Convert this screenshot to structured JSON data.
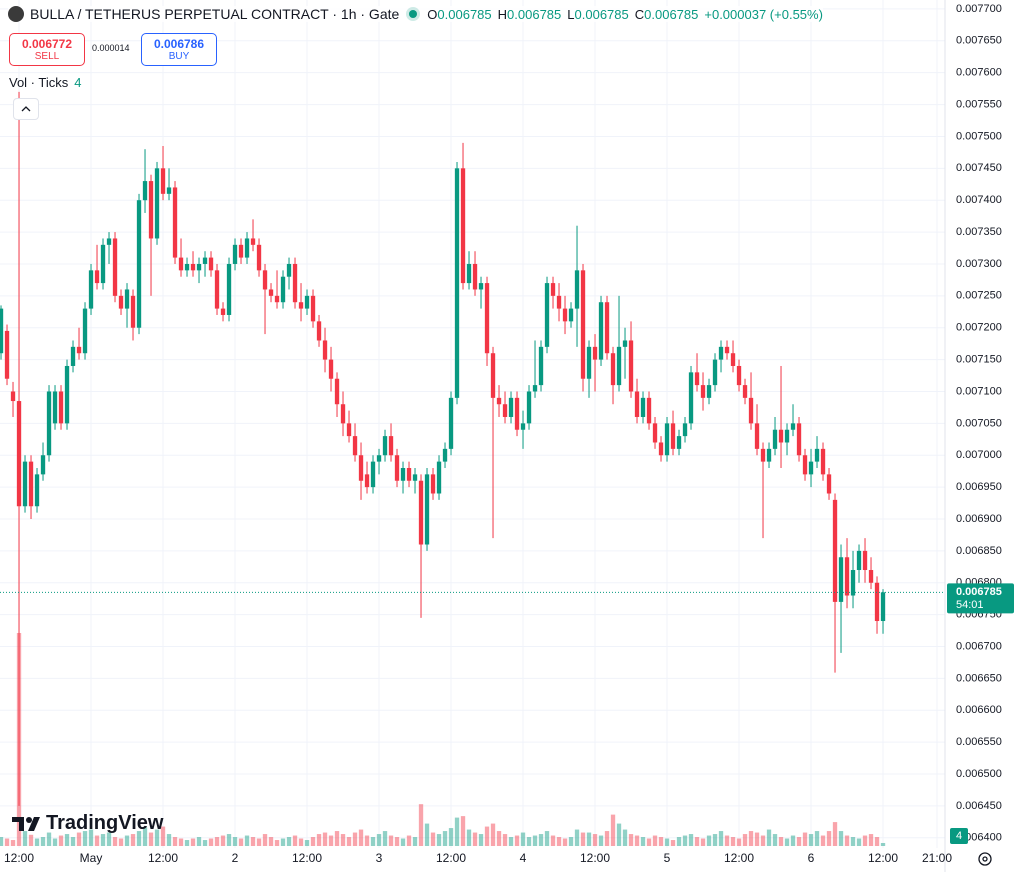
{
  "chart_data": {
    "type": "candlestick",
    "title": "BULLA / TETHERUS PERPETUAL CONTRACT · 1h · Gate",
    "ohlc_legend": [
      {
        "key": "O",
        "value": "0.006785"
      },
      {
        "key": "H",
        "value": "0.006785"
      },
      {
        "key": "L",
        "value": "0.006785"
      },
      {
        "key": "C",
        "value": "0.006785"
      }
    ],
    "change": "+0.000037 (+0.55%)",
    "sell": {
      "price": "0.006772",
      "label": "SELL"
    },
    "buy": {
      "price": "0.006786",
      "label": "BUY"
    },
    "spread": "0.000014",
    "volume_title": "Vol · Ticks",
    "logo_text": "TradingView",
    "countdown": "54:01",
    "last_price": {
      "value": 0.006785,
      "label": "0.006785"
    },
    "up_color": "#089981",
    "down_color": "#f23645",
    "grid": true,
    "xlim": [
      -0.17,
      157.33
    ],
    "xticks": [
      {
        "value": 3,
        "label": "12:00"
      },
      {
        "value": 15,
        "label": "May"
      },
      {
        "value": 27,
        "label": "12:00"
      },
      {
        "value": 39,
        "label": "2"
      },
      {
        "value": 51,
        "label": "12:00"
      },
      {
        "value": 63,
        "label": "3"
      },
      {
        "value": 75,
        "label": "12:00"
      },
      {
        "value": 87,
        "label": "4"
      },
      {
        "value": 99,
        "label": "12:00"
      },
      {
        "value": 111,
        "label": "5"
      },
      {
        "value": 123,
        "label": "12:00"
      },
      {
        "value": 135,
        "label": "6"
      },
      {
        "value": 147,
        "label": "12:00"
      },
      {
        "value": 156,
        "label": "21:00"
      }
    ],
    "ylim": [
      0.006384,
      0.007714
    ],
    "yticks": [
      {
        "value": 0.0064,
        "label": "0.006400"
      },
      {
        "value": 0.00645,
        "label": "0.006450"
      },
      {
        "value": 0.0065,
        "label": "0.006500"
      },
      {
        "value": 0.00655,
        "label": "0.006550"
      },
      {
        "value": 0.0066,
        "label": "0.006600"
      },
      {
        "value": 0.00665,
        "label": "0.006650"
      },
      {
        "value": 0.0067,
        "label": "0.006700"
      },
      {
        "value": 0.00675,
        "label": "0.006750"
      },
      {
        "value": 0.0068,
        "label": "0.006800"
      },
      {
        "value": 0.00685,
        "label": "0.006850"
      },
      {
        "value": 0.0069,
        "label": "0.006900"
      },
      {
        "value": 0.00695,
        "label": "0.006950"
      },
      {
        "value": 0.007,
        "label": "0.007000"
      },
      {
        "value": 0.00705,
        "label": "0.007050"
      },
      {
        "value": 0.0071,
        "label": "0.007100"
      },
      {
        "value": 0.00715,
        "label": "0.007150"
      },
      {
        "value": 0.0072,
        "label": "0.007200"
      },
      {
        "value": 0.00725,
        "label": "0.007250"
      },
      {
        "value": 0.0073,
        "label": "0.007300"
      },
      {
        "value": 0.00735,
        "label": "0.007350"
      },
      {
        "value": 0.0074,
        "label": "0.007400"
      },
      {
        "value": 0.00745,
        "label": "0.007450"
      },
      {
        "value": 0.0075,
        "label": "0.007500"
      },
      {
        "value": 0.00755,
        "label": "0.007550"
      },
      {
        "value": 0.0076,
        "label": "0.007600"
      },
      {
        "value": 0.00765,
        "label": "0.007650"
      },
      {
        "value": 0.0077,
        "label": "0.007700"
      }
    ],
    "ohlc": [
      [
        0.00716,
        0.007235,
        0.00715,
        0.00723
      ],
      [
        0.007195,
        0.007205,
        0.00711,
        0.00712
      ],
      [
        0.0071,
        0.007115,
        0.00706,
        0.007085
      ],
      [
        0.007085,
        0.00757,
        0.00645,
        0.00692
      ],
      [
        0.00692,
        0.007,
        0.00691,
        0.00699
      ],
      [
        0.00699,
        0.007,
        0.0069,
        0.00692
      ],
      [
        0.00692,
        0.00698,
        0.00691,
        0.00697
      ],
      [
        0.00697,
        0.00702,
        0.00696,
        0.007
      ],
      [
        0.007,
        0.00711,
        0.00699,
        0.0071
      ],
      [
        0.00705,
        0.00711,
        0.00704,
        0.0071
      ],
      [
        0.0071,
        0.00711,
        0.00704,
        0.00705
      ],
      [
        0.00705,
        0.00715,
        0.00704,
        0.00714
      ],
      [
        0.00714,
        0.00718,
        0.00713,
        0.00717
      ],
      [
        0.00717,
        0.0072,
        0.00715,
        0.00716
      ],
      [
        0.00716,
        0.00724,
        0.00715,
        0.00723
      ],
      [
        0.00723,
        0.0073,
        0.00722,
        0.00729
      ],
      [
        0.00729,
        0.00733,
        0.00726,
        0.00727
      ],
      [
        0.00727,
        0.00734,
        0.00726,
        0.00733
      ],
      [
        0.00733,
        0.00735,
        0.0073,
        0.00734
      ],
      [
        0.00734,
        0.00735,
        0.00724,
        0.00725
      ],
      [
        0.00725,
        0.00726,
        0.00722,
        0.00723
      ],
      [
        0.00723,
        0.00727,
        0.0072,
        0.00726
      ],
      [
        0.00725,
        0.00726,
        0.00718,
        0.0072
      ],
      [
        0.0072,
        0.00741,
        0.00719,
        0.0074
      ],
      [
        0.0074,
        0.00748,
        0.00738,
        0.00743
      ],
      [
        0.00743,
        0.00744,
        0.00725,
        0.00734
      ],
      [
        0.00734,
        0.00746,
        0.00733,
        0.00745
      ],
      [
        0.00745,
        0.007485,
        0.0074,
        0.00741
      ],
      [
        0.00741,
        0.00745,
        0.0074,
        0.00742
      ],
      [
        0.00742,
        0.00743,
        0.0073,
        0.00731
      ],
      [
        0.00731,
        0.00734,
        0.00728,
        0.00729
      ],
      [
        0.00729,
        0.00731,
        0.00728,
        0.0073
      ],
      [
        0.0073,
        0.00732,
        0.00728,
        0.00729
      ],
      [
        0.00729,
        0.00731,
        0.00727,
        0.0073
      ],
      [
        0.0073,
        0.00732,
        0.00728,
        0.00731
      ],
      [
        0.00731,
        0.00732,
        0.00728,
        0.00729
      ],
      [
        0.00729,
        0.0073,
        0.00722,
        0.00723
      ],
      [
        0.00723,
        0.00724,
        0.00721,
        0.00722
      ],
      [
        0.00722,
        0.00731,
        0.00721,
        0.0073
      ],
      [
        0.0073,
        0.00734,
        0.00729,
        0.00733
      ],
      [
        0.00733,
        0.00734,
        0.0073,
        0.00731
      ],
      [
        0.00731,
        0.00735,
        0.0073,
        0.00734
      ],
      [
        0.00734,
        0.00737,
        0.00732,
        0.00733
      ],
      [
        0.00733,
        0.00734,
        0.00728,
        0.00729
      ],
      [
        0.00729,
        0.0073,
        0.00719,
        0.00726
      ],
      [
        0.00726,
        0.00727,
        0.00724,
        0.00725
      ],
      [
        0.00725,
        0.00729,
        0.00723,
        0.00724
      ],
      [
        0.00724,
        0.00729,
        0.00723,
        0.00728
      ],
      [
        0.00728,
        0.00731,
        0.00726,
        0.0073
      ],
      [
        0.0073,
        0.00731,
        0.00723,
        0.00724
      ],
      [
        0.00724,
        0.00727,
        0.00721,
        0.00723
      ],
      [
        0.00723,
        0.00726,
        0.00722,
        0.00725
      ],
      [
        0.00725,
        0.00726,
        0.0072,
        0.00721
      ],
      [
        0.00721,
        0.00722,
        0.00717,
        0.00718
      ],
      [
        0.00718,
        0.0072,
        0.00713,
        0.00715
      ],
      [
        0.00715,
        0.00717,
        0.0071,
        0.00712
      ],
      [
        0.00712,
        0.00713,
        0.00706,
        0.00708
      ],
      [
        0.00708,
        0.0071,
        0.00703,
        0.00705
      ],
      [
        0.00705,
        0.00707,
        0.00702,
        0.00703
      ],
      [
        0.00703,
        0.00705,
        0.00699,
        0.007
      ],
      [
        0.007,
        0.00702,
        0.00693,
        0.00696
      ],
      [
        0.00697,
        0.00699,
        0.00694,
        0.00695
      ],
      [
        0.00695,
        0.007,
        0.00694,
        0.00699
      ],
      [
        0.00699,
        0.00701,
        0.00697,
        0.007
      ],
      [
        0.007,
        0.00704,
        0.00699,
        0.00703
      ],
      [
        0.00703,
        0.00705,
        0.00699,
        0.007
      ],
      [
        0.007,
        0.00701,
        0.00695,
        0.00696
      ],
      [
        0.00696,
        0.00699,
        0.00694,
        0.00698
      ],
      [
        0.00698,
        0.00699,
        0.00695,
        0.00696
      ],
      [
        0.00696,
        0.00698,
        0.00694,
        0.00697
      ],
      [
        0.00696,
        0.00697,
        0.006745,
        0.00686
      ],
      [
        0.00686,
        0.00698,
        0.00685,
        0.00697
      ],
      [
        0.00697,
        0.00698,
        0.00693,
        0.00694
      ],
      [
        0.00694,
        0.007,
        0.00693,
        0.00699
      ],
      [
        0.00699,
        0.00702,
        0.00698,
        0.00701
      ],
      [
        0.00701,
        0.0071,
        0.007,
        0.00709
      ],
      [
        0.00709,
        0.00746,
        0.00708,
        0.00745
      ],
      [
        0.00745,
        0.00749,
        0.00726,
        0.00727
      ],
      [
        0.00727,
        0.00732,
        0.00726,
        0.0073
      ],
      [
        0.0073,
        0.00732,
        0.00725,
        0.00726
      ],
      [
        0.00726,
        0.00728,
        0.00723,
        0.00727
      ],
      [
        0.00727,
        0.00728,
        0.00714,
        0.00716
      ],
      [
        0.00716,
        0.00717,
        0.00687,
        0.00709
      ],
      [
        0.00709,
        0.00711,
        0.00706,
        0.00708
      ],
      [
        0.00708,
        0.0071,
        0.00705,
        0.00706
      ],
      [
        0.00706,
        0.0071,
        0.00705,
        0.00709
      ],
      [
        0.00709,
        0.0071,
        0.00703,
        0.00704
      ],
      [
        0.00704,
        0.00707,
        0.00701,
        0.00705
      ],
      [
        0.00705,
        0.00711,
        0.00704,
        0.0071
      ],
      [
        0.0071,
        0.00718,
        0.00709,
        0.00711
      ],
      [
        0.00711,
        0.00718,
        0.0071,
        0.00717
      ],
      [
        0.00717,
        0.00728,
        0.00716,
        0.00727
      ],
      [
        0.00727,
        0.00728,
        0.00723,
        0.00725
      ],
      [
        0.00725,
        0.00727,
        0.00721,
        0.00723
      ],
      [
        0.00723,
        0.00725,
        0.00719,
        0.00721
      ],
      [
        0.00721,
        0.00724,
        0.0072,
        0.00723
      ],
      [
        0.00723,
        0.00736,
        0.00717,
        0.00729
      ],
      [
        0.00729,
        0.0073,
        0.0071,
        0.00712
      ],
      [
        0.00712,
        0.00718,
        0.00709,
        0.00717
      ],
      [
        0.00717,
        0.00719,
        0.0071,
        0.00715
      ],
      [
        0.00715,
        0.00725,
        0.00714,
        0.00724
      ],
      [
        0.00724,
        0.00725,
        0.00715,
        0.00716
      ],
      [
        0.00716,
        0.00717,
        0.00708,
        0.00711
      ],
      [
        0.00711,
        0.00725,
        0.0071,
        0.00717
      ],
      [
        0.00717,
        0.0072,
        0.00712,
        0.00718
      ],
      [
        0.00718,
        0.00721,
        0.00709,
        0.0071
      ],
      [
        0.0071,
        0.00712,
        0.00705,
        0.00706
      ],
      [
        0.00706,
        0.0071,
        0.00705,
        0.00709
      ],
      [
        0.00709,
        0.0071,
        0.00704,
        0.00705
      ],
      [
        0.00705,
        0.00706,
        0.00701,
        0.00702
      ],
      [
        0.00702,
        0.00703,
        0.00699,
        0.007
      ],
      [
        0.007,
        0.00706,
        0.00699,
        0.00705
      ],
      [
        0.00705,
        0.00707,
        0.007,
        0.00701
      ],
      [
        0.00701,
        0.00704,
        0.007,
        0.00703
      ],
      [
        0.00703,
        0.00706,
        0.00702,
        0.00705
      ],
      [
        0.00705,
        0.00714,
        0.00704,
        0.00713
      ],
      [
        0.00713,
        0.00716,
        0.0071,
        0.00711
      ],
      [
        0.00711,
        0.00713,
        0.00707,
        0.00709
      ],
      [
        0.00709,
        0.00712,
        0.00708,
        0.00711
      ],
      [
        0.00711,
        0.00716,
        0.0071,
        0.00715
      ],
      [
        0.00715,
        0.00718,
        0.00713,
        0.00717
      ],
      [
        0.00717,
        0.00718,
        0.00715,
        0.00716
      ],
      [
        0.00716,
        0.00718,
        0.00713,
        0.00714
      ],
      [
        0.00714,
        0.00715,
        0.0071,
        0.00711
      ],
      [
        0.00711,
        0.00712,
        0.00708,
        0.00709
      ],
      [
        0.00709,
        0.00713,
        0.00704,
        0.00705
      ],
      [
        0.00705,
        0.00708,
        0.007,
        0.00701
      ],
      [
        0.00701,
        0.00702,
        0.00687,
        0.00699
      ],
      [
        0.00699,
        0.00702,
        0.00698,
        0.00701
      ],
      [
        0.00701,
        0.00706,
        0.007,
        0.00704
      ],
      [
        0.00704,
        0.00714,
        0.00698,
        0.00702
      ],
      [
        0.00702,
        0.00705,
        0.007,
        0.00704
      ],
      [
        0.00704,
        0.00708,
        0.00703,
        0.00705
      ],
      [
        0.00705,
        0.00706,
        0.00699,
        0.007
      ],
      [
        0.007,
        0.00701,
        0.00696,
        0.00697
      ],
      [
        0.00697,
        0.00701,
        0.00695,
        0.00699
      ],
      [
        0.00699,
        0.00703,
        0.00698,
        0.00701
      ],
      [
        0.00701,
        0.00702,
        0.00696,
        0.00697
      ],
      [
        0.00697,
        0.00698,
        0.00693,
        0.00694
      ],
      [
        0.00693,
        0.00694,
        0.006659,
        0.00677
      ],
      [
        0.00677,
        0.00686,
        0.00669,
        0.00684
      ],
      [
        0.00684,
        0.00687,
        0.00676,
        0.00678
      ],
      [
        0.00678,
        0.00685,
        0.00676,
        0.00682
      ],
      [
        0.00682,
        0.00686,
        0.0068,
        0.00685
      ],
      [
        0.00685,
        0.00687,
        0.0068,
        0.00682
      ],
      [
        0.00682,
        0.00684,
        0.00679,
        0.0068
      ],
      [
        0.0068,
        0.00681,
        0.00672,
        0.00674
      ],
      [
        0.00674,
        0.00679,
        0.00672,
        0.006785
      ]
    ],
    "volume": [
      12,
      10,
      8,
      285,
      20,
      15,
      10,
      12,
      18,
      10,
      14,
      16,
      12,
      18,
      20,
      22,
      14,
      16,
      18,
      12,
      10,
      14,
      16,
      20,
      25,
      18,
      22,
      26,
      16,
      12,
      10,
      8,
      10,
      12,
      8,
      10,
      12,
      14,
      16,
      12,
      10,
      14,
      12,
      10,
      16,
      12,
      8,
      10,
      12,
      14,
      10,
      8,
      12,
      16,
      18,
      14,
      20,
      16,
      12,
      18,
      22,
      14,
      12,
      16,
      20,
      14,
      12,
      10,
      14,
      12,
      56,
      30,
      18,
      16,
      20,
      24,
      38,
      40,
      22,
      18,
      16,
      26,
      30,
      20,
      16,
      12,
      14,
      18,
      12,
      14,
      16,
      20,
      14,
      12,
      10,
      12,
      22,
      18,
      18,
      16,
      14,
      20,
      42,
      30,
      22,
      16,
      14,
      12,
      10,
      14,
      12,
      10,
      8,
      12,
      14,
      16,
      12,
      10,
      14,
      16,
      20,
      14,
      12,
      10,
      16,
      20,
      18,
      14,
      22,
      16,
      12,
      10,
      14,
      12,
      18,
      16,
      20,
      14,
      20,
      32,
      20,
      14,
      12,
      10,
      14,
      16,
      12,
      4
    ]
  }
}
